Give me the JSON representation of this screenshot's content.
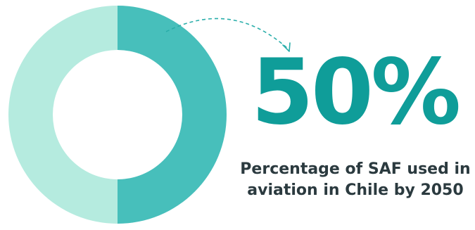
{
  "chart_data": {
    "type": "pie",
    "variant": "donut",
    "value_percent": 50,
    "highlight_label": "50%",
    "caption": "Percentage of SAF used in aviation in Chile by 2050",
    "slices": [
      {
        "value": 50,
        "color": "#47bfbb"
      },
      {
        "value": 50,
        "color": "#b5ebdf"
      }
    ]
  },
  "colors": {
    "accent": "#0f9d99",
    "filled": "#47bfbb",
    "remaining": "#b5ebdf",
    "caption_text": "#2b3a3f",
    "arrow": "#2aaeaa"
  }
}
